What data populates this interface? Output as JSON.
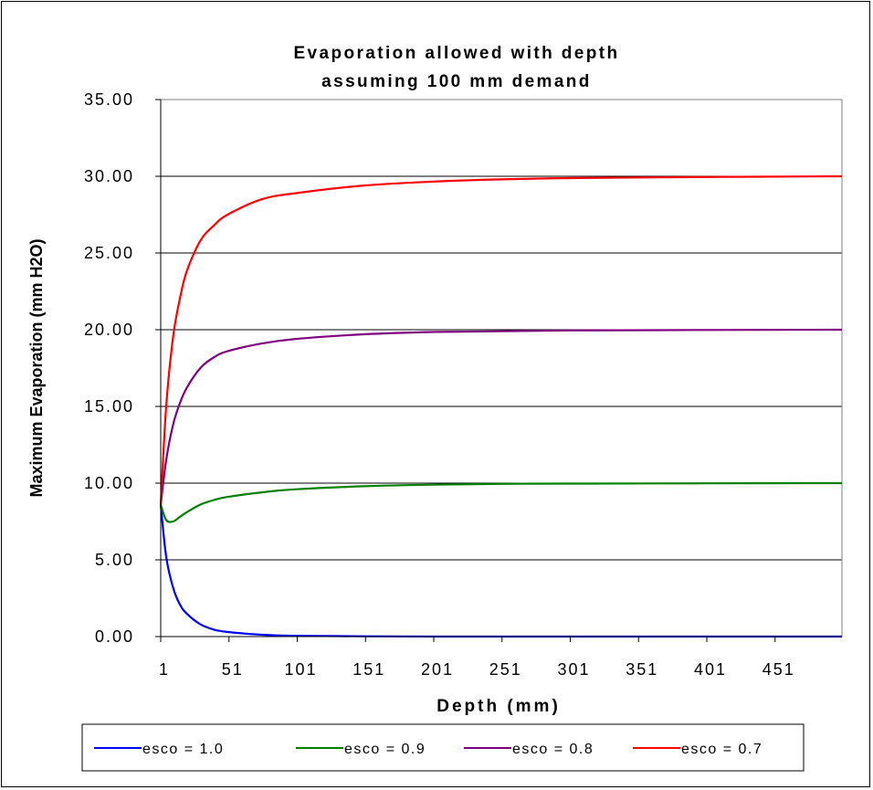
{
  "chart_data": {
    "type": "line",
    "title_lines": [
      "Evaporation allowed with depth",
      "assuming 100 mm demand"
    ],
    "xlabel": "Depth (mm)",
    "ylabel": "Maximum Evaporation (mm H2O)",
    "xlim": [
      1,
      500
    ],
    "ylim": [
      0,
      35
    ],
    "x_ticks": [
      1,
      51,
      101,
      151,
      201,
      251,
      301,
      351,
      401,
      451
    ],
    "y_ticks": [
      "0.00",
      "5.00",
      "10.00",
      "15.00",
      "20.00",
      "25.00",
      "30.00",
      "35.00"
    ],
    "grid": "horizontal",
    "legend_position": "bottom",
    "x": [
      1,
      5,
      10,
      15,
      20,
      30,
      40,
      50,
      75,
      100,
      150,
      200,
      250,
      300,
      400,
      500
    ],
    "series": [
      {
        "name": "esco = 1.0",
        "color": "#0000ff",
        "values": [
          8.6,
          5.2,
          3.2,
          2.1,
          1.5,
          0.8,
          0.45,
          0.3,
          0.12,
          0.05,
          0.02,
          0.0,
          0.0,
          0.0,
          0.0,
          0.0
        ]
      },
      {
        "name": "esco = 0.9",
        "color": "#008000",
        "values": [
          8.6,
          7.6,
          7.5,
          7.8,
          8.1,
          8.6,
          8.9,
          9.1,
          9.4,
          9.6,
          9.8,
          9.9,
          9.95,
          9.97,
          9.99,
          10.0
        ]
      },
      {
        "name": "esco = 0.8",
        "color": "#800080",
        "values": [
          8.6,
          11.5,
          13.8,
          15.2,
          16.2,
          17.5,
          18.2,
          18.6,
          19.1,
          19.4,
          19.7,
          19.85,
          19.9,
          19.95,
          19.98,
          20.0
        ]
      },
      {
        "name": "esco = 0.7",
        "color": "#ff0000",
        "values": [
          8.6,
          15.0,
          19.5,
          22.0,
          23.8,
          25.8,
          26.8,
          27.5,
          28.5,
          28.9,
          29.4,
          29.65,
          29.8,
          29.88,
          29.95,
          30.0
        ]
      }
    ]
  }
}
